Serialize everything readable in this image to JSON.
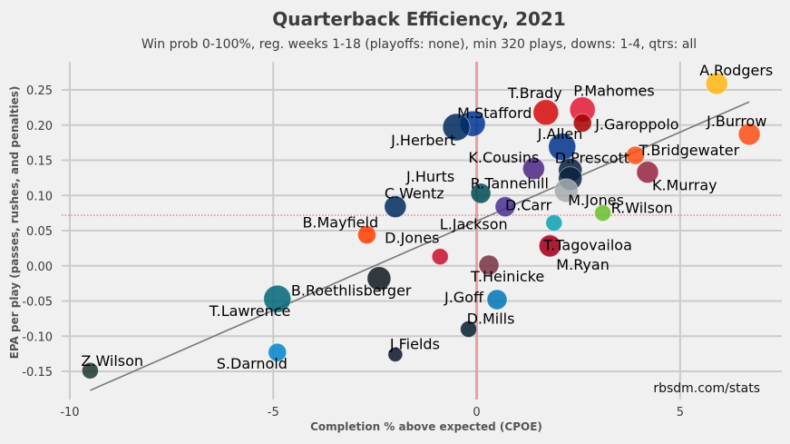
{
  "chart_data": {
    "type": "scatter",
    "title": "Quarterback Efficiency, 2021",
    "subtitle": "Win prob 0-100%, reg. weeks 1-18 (playoffs: none), min 320 plays, downs: 1-4, qtrs: all",
    "xlabel": "Completion % above expected (CPOE)",
    "ylabel": "EPA per play (passes, rushes, and penalties)",
    "caption": "rbsdm.com/stats",
    "xlim": [
      -10.2,
      7.5
    ],
    "ylim": [
      -0.19,
      0.29
    ],
    "x_ticks": [
      -10,
      -5,
      0,
      5
    ],
    "y_ticks": [
      -0.15,
      -0.1,
      -0.05,
      0.0,
      0.05,
      0.1,
      0.15,
      0.2,
      0.25
    ],
    "grid": true,
    "reference_lines": {
      "x": 0.0,
      "y": 0.072
    },
    "trend_line": {
      "x1": -9.5,
      "y1": -0.177,
      "x2": 6.7,
      "y2": 0.233
    },
    "points": [
      {
        "label": "A.Rodgers",
        "x": 5.9,
        "y": 0.259,
        "color": "#ffb612"
      },
      {
        "label": "J.Burrow",
        "x": 6.7,
        "y": 0.187,
        "color": "#fb4f14"
      },
      {
        "label": "T.Brady",
        "x": 1.7,
        "y": 0.218,
        "color": "#d50a0a"
      },
      {
        "label": "P.Mahomes",
        "x": 2.6,
        "y": 0.222,
        "color": "#e31837"
      },
      {
        "label": "J.Garoppolo",
        "x": 2.6,
        "y": 0.203,
        "color": "#aa0000"
      },
      {
        "label": "M.Stafford",
        "x": -0.1,
        "y": 0.202,
        "color": "#003594"
      },
      {
        "label": "J.Herbert",
        "x": -0.5,
        "y": 0.197,
        "color": "#002a5e"
      },
      {
        "label": "J.Allen",
        "x": 2.1,
        "y": 0.169,
        "color": "#00338d"
      },
      {
        "label": "T.Bridgewater",
        "x": 3.9,
        "y": 0.157,
        "color": "#fb4f14"
      },
      {
        "label": "K.Cousins",
        "x": 1.4,
        "y": 0.138,
        "color": "#4f2683"
      },
      {
        "label": "D.Prescott",
        "x": 2.3,
        "y": 0.136,
        "color": "#041e42"
      },
      {
        "label": "K.Murray",
        "x": 4.2,
        "y": 0.133,
        "color": "#97233f"
      },
      {
        "label": "J.Hurts",
        "x": 0.1,
        "y": 0.103,
        "color": "#004c54"
      },
      {
        "label": "R.Tannehill",
        "x": 2.3,
        "y": 0.124,
        "color": "#0c2340"
      },
      {
        "label": "M.Jones",
        "x": 2.2,
        "y": 0.107,
        "color": "#a5acaf"
      },
      {
        "label": "C.Wentz",
        "x": -2.0,
        "y": 0.084,
        "color": "#002c5f"
      },
      {
        "label": "D.Carr",
        "x": 0.7,
        "y": 0.084,
        "color": "#4b2f91"
      },
      {
        "label": "R.Wilson",
        "x": 3.1,
        "y": 0.075,
        "color": "#69be28"
      },
      {
        "label": "L.Jackson",
        "x": 1.9,
        "y": 0.061,
        "color": "#0aa1b0"
      },
      {
        "label": "B.Mayfield",
        "x": -2.7,
        "y": 0.044,
        "color": "#ff3c00"
      },
      {
        "label": "T.Tagovailoa",
        "x": 1.8,
        "y": 0.029,
        "color": "#c41e3a"
      },
      {
        "label": "M.Ryan",
        "x": 1.8,
        "y": 0.028,
        "color": "#a71930"
      },
      {
        "label": "D.Jones",
        "x": -0.9,
        "y": 0.013,
        "color": "#c8102e"
      },
      {
        "label": "T.Heinicke",
        "x": 0.3,
        "y": 0.001,
        "color": "#773141"
      },
      {
        "label": "B.Roethlisberger",
        "x": -2.4,
        "y": -0.018,
        "color": "#101820"
      },
      {
        "label": "T.Lawrence",
        "x": -4.9,
        "y": -0.047,
        "color": "#006778"
      },
      {
        "label": "J.Goff",
        "x": 0.5,
        "y": -0.048,
        "color": "#0076b6"
      },
      {
        "label": "D.Mills",
        "x": -0.2,
        "y": -0.09,
        "color": "#03202f"
      },
      {
        "label": "S.Darnold",
        "x": -4.9,
        "y": -0.123,
        "color": "#0085ca"
      },
      {
        "label": "J.Fields",
        "x": -2.0,
        "y": -0.126,
        "color": "#0b162a"
      },
      {
        "label": "Z.Wilson",
        "x": -9.5,
        "y": -0.149,
        "color": "#203731"
      }
    ]
  }
}
